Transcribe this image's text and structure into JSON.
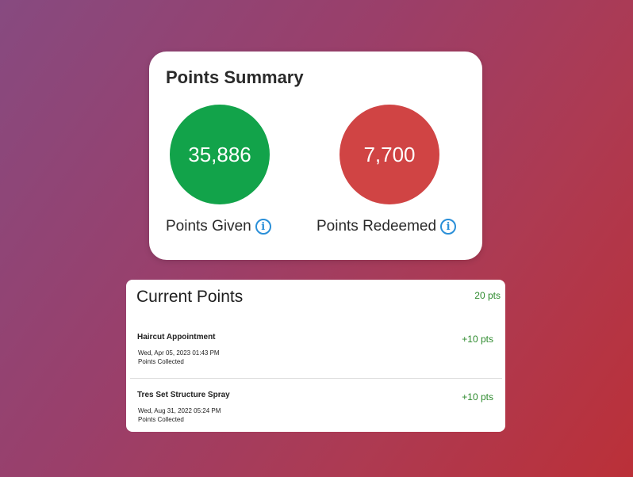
{
  "summary": {
    "title": "Points Summary",
    "given": {
      "value": "35,886",
      "label": "Points Given",
      "color": "#12a34a"
    },
    "redeemed": {
      "value": "7,700",
      "label": "Points Redeemed",
      "color": "#d04444"
    },
    "info_icon": "i"
  },
  "current": {
    "title": "Current Points",
    "total": "20 pts",
    "items": [
      {
        "name": "Haircut Appointment",
        "points": "+10 pts",
        "date": "Wed, Apr 05, 2023 01:43 PM",
        "status": "Points Collected"
      },
      {
        "name": "Tres Set Structure Spray",
        "points": "+10 pts",
        "date": "Wed, Aug 31, 2022 05:24 PM",
        "status": "Points Collected"
      }
    ]
  }
}
